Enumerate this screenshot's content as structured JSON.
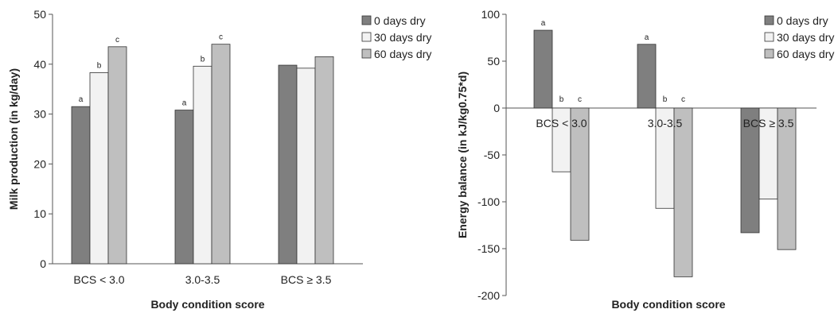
{
  "chart_data": [
    {
      "type": "bar",
      "xlabel": "Body condition score",
      "ylabel": "Milk production (in kg/day)",
      "ylim": [
        0,
        50
      ],
      "yticks": [
        0,
        10,
        20,
        30,
        40,
        50
      ],
      "grid": false,
      "legend_position": "top-right",
      "categories": [
        "BCS < 3.0",
        "3.0-3.5",
        "BCS ≥ 3.5"
      ],
      "series": [
        {
          "name": "0 days dry",
          "color": "#7f7f7f",
          "values": [
            31.5,
            30.8,
            39.8
          ],
          "letters": [
            "a",
            "a",
            ""
          ]
        },
        {
          "name": "30 days dry",
          "color": "#f2f2f2",
          "values": [
            38.3,
            39.6,
            39.2
          ],
          "letters": [
            "b",
            "b",
            ""
          ]
        },
        {
          "name": "60 days dry",
          "color": "#bfbfbf",
          "values": [
            43.5,
            44.0,
            41.5
          ],
          "letters": [
            "c",
            "c",
            ""
          ]
        }
      ]
    },
    {
      "type": "bar",
      "xlabel": "Body condition score",
      "ylabel": "Energy balance (in kJ/kg0.75*d)",
      "ylim": [
        -200,
        100
      ],
      "yticks": [
        -200,
        -150,
        -100,
        -50,
        0,
        50,
        100
      ],
      "grid": false,
      "legend_position": "top-right",
      "categories": [
        "BCS < 3.0",
        "3.0-3.5",
        "BCS ≥ 3.5"
      ],
      "series": [
        {
          "name": "0 days dry",
          "color": "#7f7f7f",
          "values": [
            83,
            68,
            -133
          ],
          "letters": [
            "a",
            "a",
            ""
          ]
        },
        {
          "name": "30 days dry",
          "color": "#f2f2f2",
          "values": [
            -68,
            -107,
            -97
          ],
          "letters": [
            "b",
            "b",
            ""
          ]
        },
        {
          "name": "60 days dry",
          "color": "#bfbfbf",
          "values": [
            -141,
            -180,
            -151
          ],
          "letters": [
            "c",
            "c",
            ""
          ]
        }
      ]
    }
  ]
}
